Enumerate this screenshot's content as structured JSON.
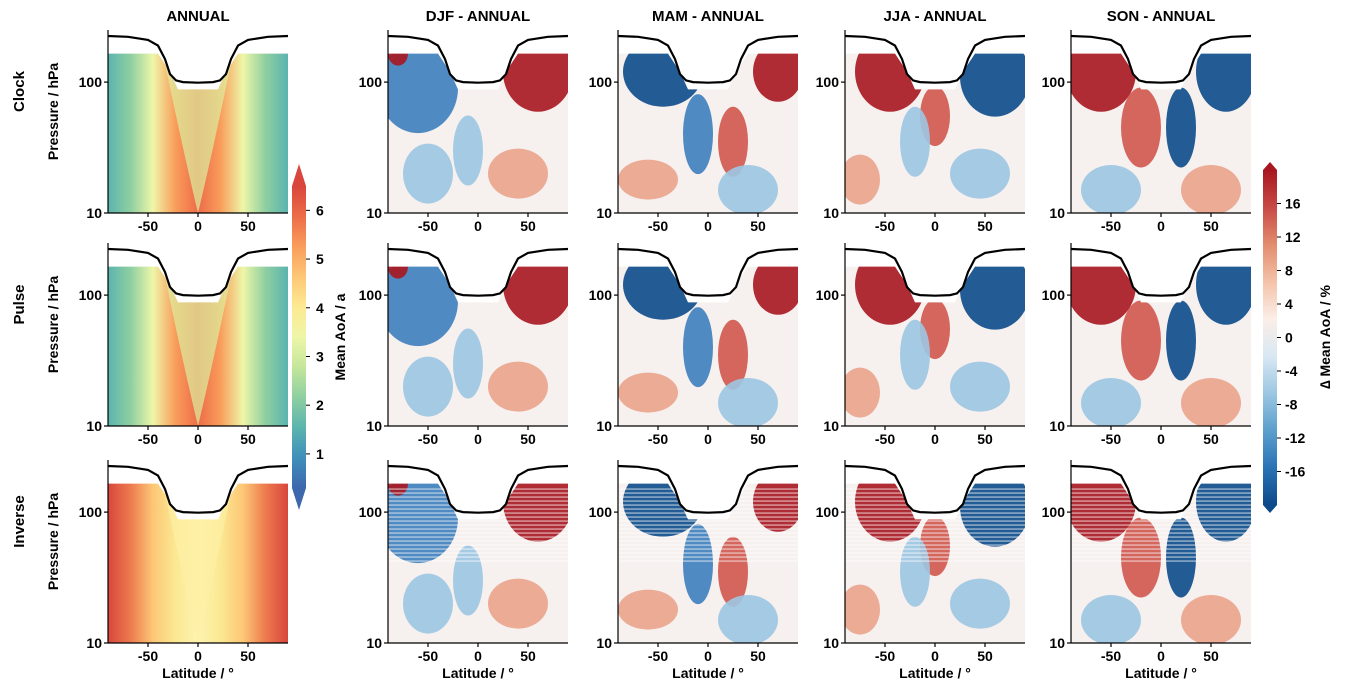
{
  "chart_data": {
    "type": "heatmap",
    "columns": [
      {
        "key": "annual",
        "title": "ANNUAL"
      },
      {
        "key": "djf",
        "title": "DJF - ANNUAL"
      },
      {
        "key": "mam",
        "title": "MAM - ANNUAL"
      },
      {
        "key": "jja",
        "title": "JJA - ANNUAL"
      },
      {
        "key": "son",
        "title": "SON - ANNUAL"
      }
    ],
    "rows": [
      {
        "key": "clock",
        "label": "Clock"
      },
      {
        "key": "pulse",
        "label": "Pulse"
      },
      {
        "key": "inverse",
        "label": "Inverse"
      }
    ],
    "xlabel": "Latitude / °",
    "ylabel": "Pressure / hPa",
    "x_ticks": [
      "-50",
      "0",
      "50"
    ],
    "y_ticks": [
      "10",
      "100"
    ],
    "xlim": [
      -90,
      90
    ],
    "ylim_hPa": [
      250,
      10
    ],
    "y_scale": "log",
    "colorbar_absolute": {
      "label": "Mean AoA / a",
      "ticks": [
        "1",
        "2",
        "3",
        "4",
        "5",
        "6"
      ],
      "range": [
        0.3,
        6.5
      ],
      "colormap": [
        "#3d68ad",
        "#3f8fba",
        "#5bb4ae",
        "#8ecfa1",
        "#c4e69b",
        "#eef6a8",
        "#fde992",
        "#fdc776",
        "#f99d5b",
        "#ed6c48",
        "#d8463d"
      ],
      "extend": "both"
    },
    "colorbar_difference": {
      "label": "∆ Mean AoA / %",
      "ticks": [
        "16",
        "12",
        "8",
        "4",
        "0",
        "-4",
        "-8",
        "-12",
        "-16"
      ],
      "range": [
        -20,
        20
      ],
      "colormap": [
        "#0c4a8a",
        "#2a73b5",
        "#5b9fcd",
        "#9cc7e2",
        "#d9e8f3",
        "#fbeee7",
        "#f4c2a8",
        "#e28c6e",
        "#c74a45",
        "#a8161f"
      ],
      "extend": "both"
    },
    "tropopause_line": {
      "color": "#000000",
      "lat": [
        -90,
        -70,
        -50,
        -40,
        -33,
        -28,
        -22,
        -15,
        0,
        15,
        22,
        28,
        33,
        40,
        50,
        70,
        90
      ],
      "pressure_hPa": [
        225,
        222,
        210,
        190,
        150,
        115,
        103,
        100,
        99,
        100,
        103,
        115,
        150,
        190,
        210,
        222,
        225
      ]
    },
    "panels": {
      "annual": {
        "clock": "Mean AoA 0.5–6 a, youngest in tropical lower stratosphere, oldest at high latitudes aloft",
        "pulse": "Same structure as Clock",
        "inverse": "Older values at high latitudes; horizontal striping near the tropopause"
      },
      "djf": {
        "clock": "Positive (red) in NH mid-latitudes 40–90N near 100 hPa; negative (blue) over tropics and SH"
      },
      "mam": {
        "clock": "Negative (blue) in SH lower stratosphere; positive in NH near 20–30N aloft"
      },
      "jja": {
        "clock": "Positive (red) in SH mid-latitudes and tropics; negative in NH"
      },
      "son": {
        "clock": "Strong positive in SH 90S–30S; negative in NH 20N–90N"
      }
    }
  }
}
